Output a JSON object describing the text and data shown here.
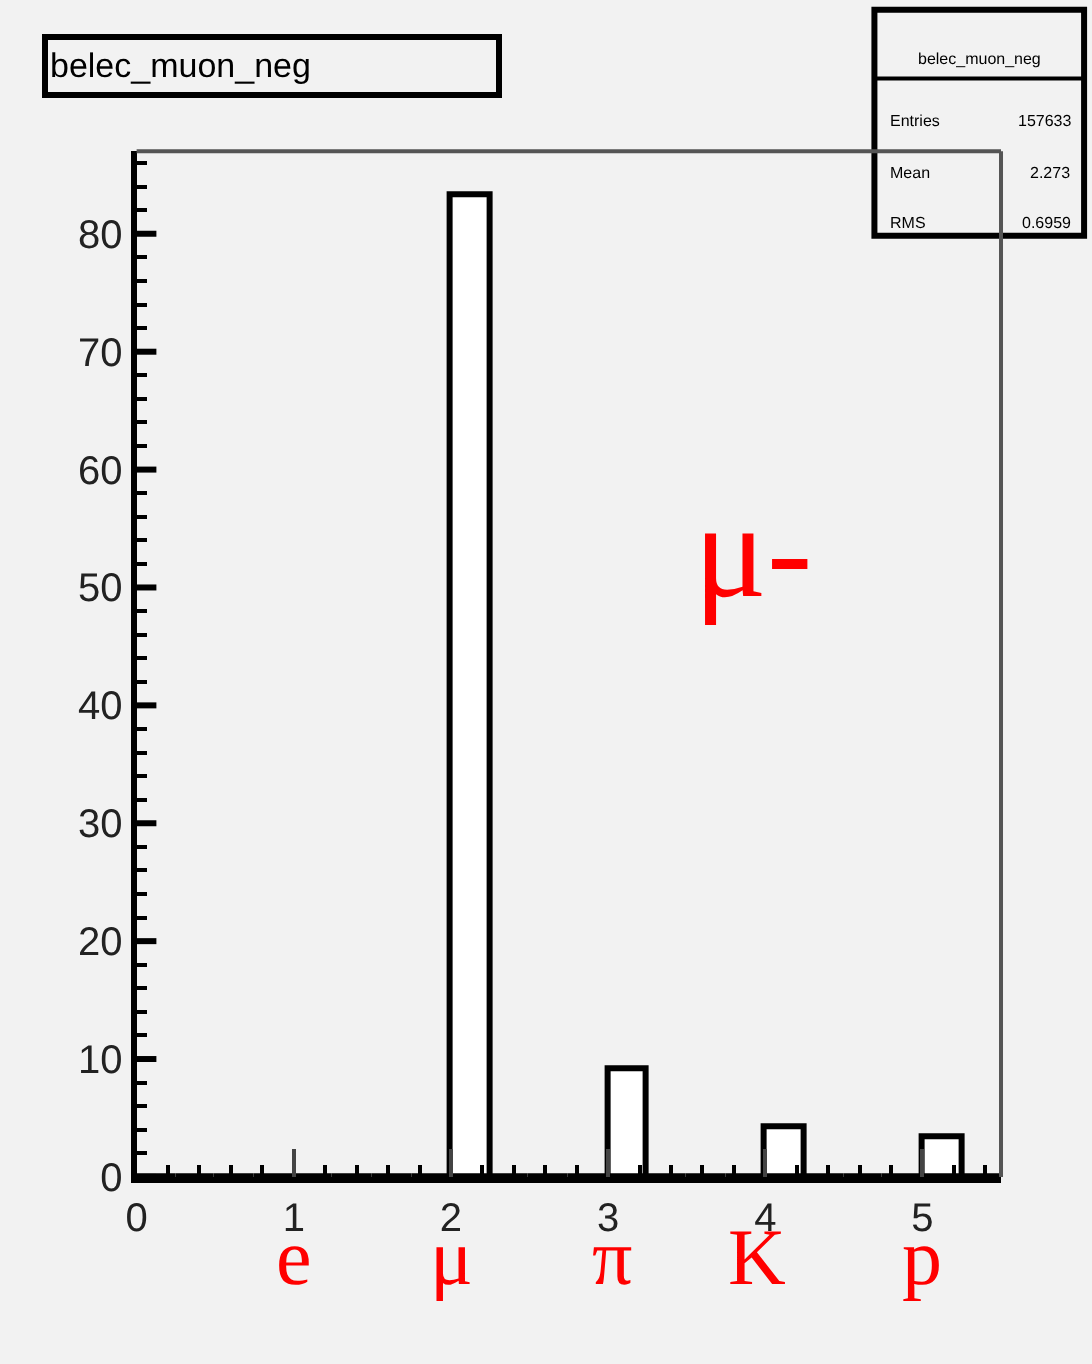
{
  "chart_data": {
    "type": "histogram",
    "title": "belec_muon_neg",
    "bins": [
      0,
      0.25,
      0.5,
      0.75,
      1,
      1.25,
      1.5,
      1.75,
      2,
      2.25,
      2.5,
      2.75,
      3,
      3.25,
      3.5,
      3.75,
      4,
      4.25,
      4.5,
      4.75,
      5,
      5.25,
      5.5
    ],
    "values": [
      0,
      0,
      0,
      0,
      0,
      0,
      0,
      0,
      83.3,
      0,
      0,
      0,
      9.2,
      0,
      0,
      0,
      4.2,
      0,
      0,
      0,
      3.3,
      0
    ],
    "color": "#ffffff",
    "xlim": [
      0,
      5.5
    ],
    "xticks": [
      0,
      1,
      2,
      3,
      4,
      5
    ],
    "ylim": [
      0,
      87
    ],
    "yticks": [
      0,
      10,
      20,
      30,
      40,
      50,
      60,
      70,
      80
    ],
    "grid": false,
    "annotations": [
      "μ-",
      "e",
      "μ",
      "π",
      "K",
      "p",
      "belec_muon_neg",
      "Entries",
      "157633",
      "Mean",
      "2.273",
      "RMS",
      "0.6959"
    ]
  }
}
